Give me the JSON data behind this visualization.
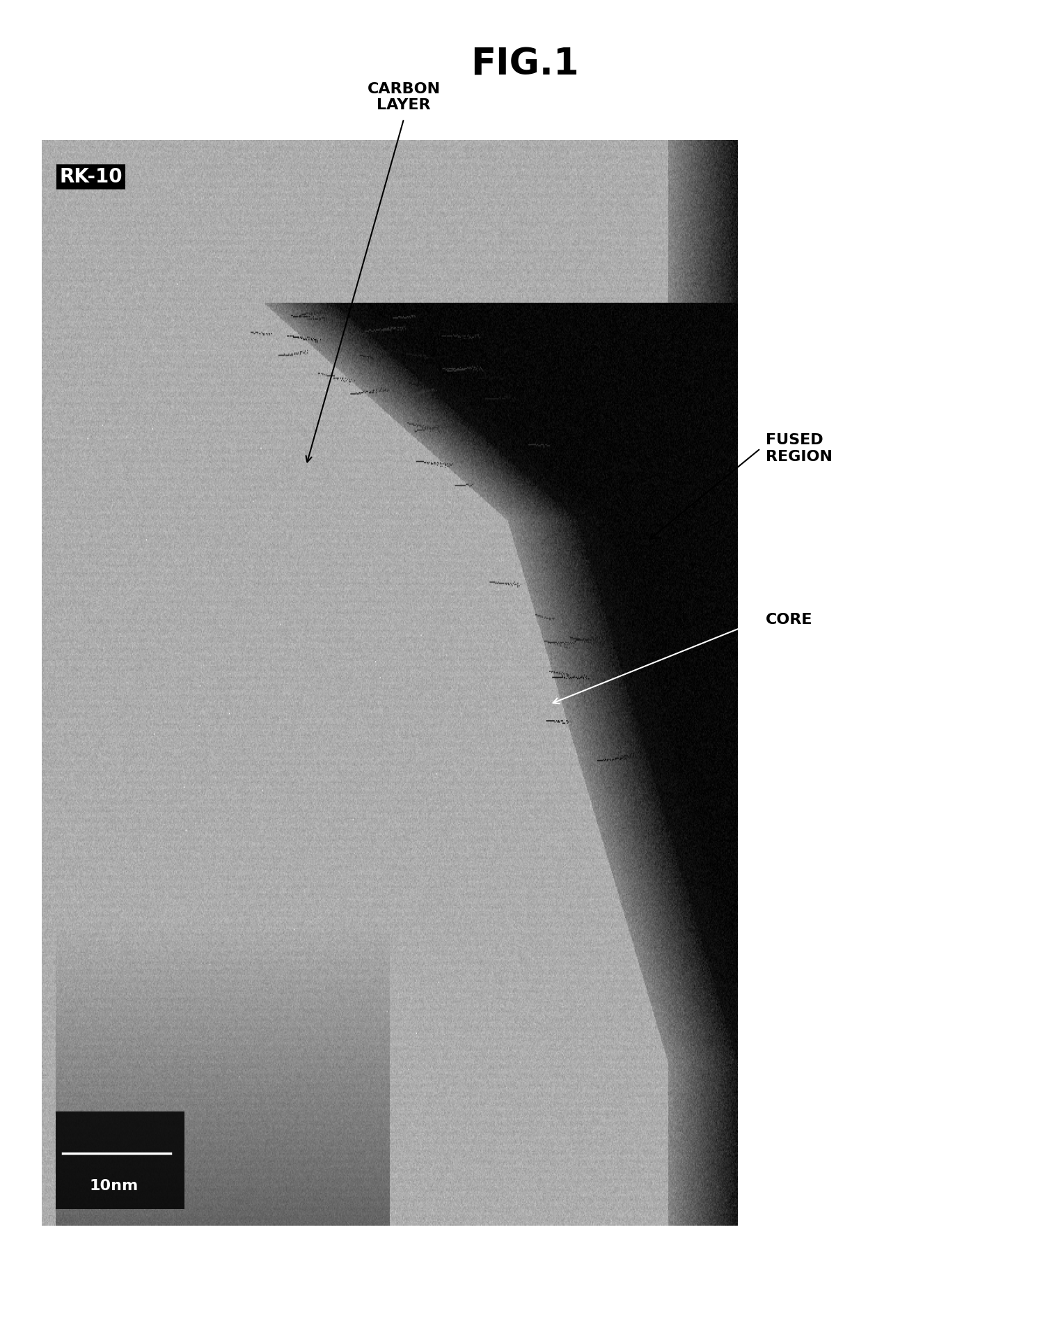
{
  "title": "FIG.1",
  "title_fontsize": 38,
  "title_fontweight": "bold",
  "bg_color": "#ffffff",
  "label_rk10": "RK-10",
  "label_carbon": "CARBON\nLAYER",
  "label_fused": "FUSED\nREGION",
  "label_core": "CORE",
  "scale_label": "10nm"
}
